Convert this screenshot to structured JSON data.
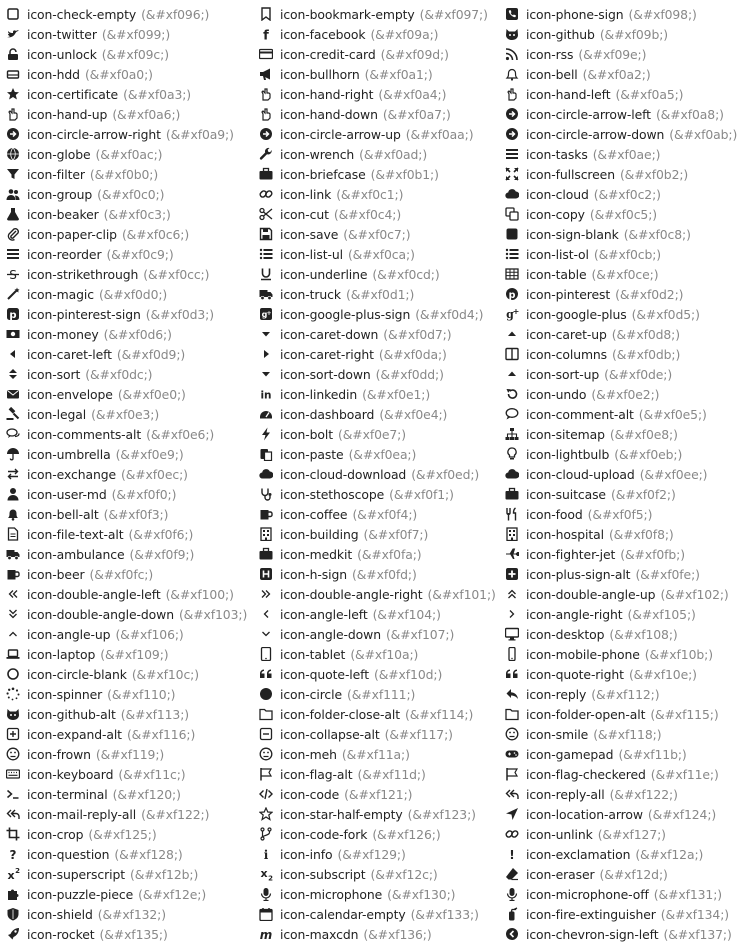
{
  "columns": [
    {
      "items": [
        {
          "name": "icon-check-empty",
          "code": "(&#xf096;)",
          "glyph": "box"
        },
        {
          "name": "icon-twitter",
          "code": "(&#xf099;)",
          "glyph": "bird"
        },
        {
          "name": "icon-unlock",
          "code": "(&#xf09c;)",
          "glyph": "lock"
        },
        {
          "name": "icon-hdd",
          "code": "(&#xf0a0;)",
          "glyph": "drive"
        },
        {
          "name": "icon-certificate",
          "code": "(&#xf0a3;)",
          "glyph": "star"
        },
        {
          "name": "icon-hand-up",
          "code": "(&#xf0a6;)",
          "glyph": "hand"
        },
        {
          "name": "icon-circle-arrow-right",
          "code": "(&#xf0a9;)",
          "glyph": "circle-arrow"
        },
        {
          "name": "icon-globe",
          "code": "(&#xf0ac;)",
          "glyph": "circle"
        },
        {
          "name": "icon-filter",
          "code": "(&#xf0b0;)",
          "glyph": "funnel"
        },
        {
          "name": "icon-group",
          "code": "(&#xf0c0;)",
          "glyph": "people"
        },
        {
          "name": "icon-beaker",
          "code": "(&#xf0c3;)",
          "glyph": "flask"
        },
        {
          "name": "icon-paper-clip",
          "code": "(&#xf0c6;)",
          "glyph": "clip"
        },
        {
          "name": "icon-reorder",
          "code": "(&#xf0c9;)",
          "glyph": "bars"
        },
        {
          "name": "icon-strikethrough",
          "code": "(&#xf0cc;)",
          "glyph": "strike"
        },
        {
          "name": "icon-magic",
          "code": "(&#xf0d0;)",
          "glyph": "wand"
        },
        {
          "name": "icon-pinterest-sign",
          "code": "(&#xf0d3;)",
          "glyph": "square-p"
        },
        {
          "name": "icon-money",
          "code": "(&#xf0d6;)",
          "glyph": "bill"
        },
        {
          "name": "icon-caret-left",
          "code": "(&#xf0d9;)",
          "glyph": "caret-left"
        },
        {
          "name": "icon-sort",
          "code": "(&#xf0dc;)",
          "glyph": "sort"
        },
        {
          "name": "icon-envelope",
          "code": "(&#xf0e0;)",
          "glyph": "envelope"
        },
        {
          "name": "icon-legal",
          "code": "(&#xf0e3;)",
          "glyph": "gavel"
        },
        {
          "name": "icon-comments-alt",
          "code": "(&#xf0e6;)",
          "glyph": "bubbles"
        },
        {
          "name": "icon-umbrella",
          "code": "(&#xf0e9;)",
          "glyph": "umbrella"
        },
        {
          "name": "icon-exchange",
          "code": "(&#xf0ec;)",
          "glyph": "exchange"
        },
        {
          "name": "icon-user-md",
          "code": "(&#xf0f0;)",
          "glyph": "person"
        },
        {
          "name": "icon-bell-alt",
          "code": "(&#xf0f3;)",
          "glyph": "bell-solid"
        },
        {
          "name": "icon-file-text-alt",
          "code": "(&#xf0f6;)",
          "glyph": "file"
        },
        {
          "name": "icon-ambulance",
          "code": "(&#xf0f9;)",
          "glyph": "truck"
        },
        {
          "name": "icon-beer",
          "code": "(&#xf0fc;)",
          "glyph": "mug"
        },
        {
          "name": "icon-double-angle-left",
          "code": "(&#xf100;)",
          "glyph": "dbl-left"
        },
        {
          "name": "icon-double-angle-down",
          "code": "(&#xf103;)",
          "glyph": "dbl-down"
        },
        {
          "name": "icon-angle-up",
          "code": "(&#xf106;)",
          "glyph": "angle-up"
        },
        {
          "name": "icon-laptop",
          "code": "(&#xf109;)",
          "glyph": "laptop"
        },
        {
          "name": "icon-circle-blank",
          "code": "(&#xf10c;)",
          "glyph": "ring"
        },
        {
          "name": "icon-spinner",
          "code": "(&#xf110;)",
          "glyph": "spinner"
        },
        {
          "name": "icon-github-alt",
          "code": "(&#xf113;)",
          "glyph": "cat"
        },
        {
          "name": "icon-expand-alt",
          "code": "(&#xf116;)",
          "glyph": "plus-box"
        },
        {
          "name": "icon-frown",
          "code": "(&#xf119;)",
          "glyph": "face"
        },
        {
          "name": "icon-keyboard",
          "code": "(&#xf11c;)",
          "glyph": "keyboard"
        },
        {
          "name": "icon-terminal",
          "code": "(&#xf120;)",
          "glyph": "prompt"
        },
        {
          "name": "icon-mail-reply-all",
          "code": "(&#xf122;)",
          "glyph": "reply-all"
        },
        {
          "name": "icon-crop",
          "code": "(&#xf125;)",
          "glyph": "crop"
        },
        {
          "name": "icon-question",
          "code": "(&#xf128;)",
          "glyph": "question"
        },
        {
          "name": "icon-superscript",
          "code": "(&#xf12b;)",
          "glyph": "sup"
        },
        {
          "name": "icon-puzzle-piece",
          "code": "(&#xf12e;)",
          "glyph": "puzzle"
        },
        {
          "name": "icon-shield",
          "code": "(&#xf132;)",
          "glyph": "shield"
        },
        {
          "name": "icon-rocket",
          "code": "(&#xf135;)",
          "glyph": "rocket"
        }
      ]
    },
    {
      "items": [
        {
          "name": "icon-bookmark-empty",
          "code": "(&#xf097;)",
          "glyph": "bookmark"
        },
        {
          "name": "icon-facebook",
          "code": "(&#xf09a;)",
          "glyph": "f"
        },
        {
          "name": "icon-credit-card",
          "code": "(&#xf09d;)",
          "glyph": "card"
        },
        {
          "name": "icon-bullhorn",
          "code": "(&#xf0a1;)",
          "glyph": "horn"
        },
        {
          "name": "icon-hand-right",
          "code": "(&#xf0a4;)",
          "glyph": "hand"
        },
        {
          "name": "icon-hand-down",
          "code": "(&#xf0a7;)",
          "glyph": "hand"
        },
        {
          "name": "icon-circle-arrow-up",
          "code": "(&#xf0aa;)",
          "glyph": "circle-arrow"
        },
        {
          "name": "icon-wrench",
          "code": "(&#xf0ad;)",
          "glyph": "wrench"
        },
        {
          "name": "icon-briefcase",
          "code": "(&#xf0b1;)",
          "glyph": "case"
        },
        {
          "name": "icon-link",
          "code": "(&#xf0c1;)",
          "glyph": "link"
        },
        {
          "name": "icon-cut",
          "code": "(&#xf0c4;)",
          "glyph": "scissors"
        },
        {
          "name": "icon-save",
          "code": "(&#xf0c7;)",
          "glyph": "floppy"
        },
        {
          "name": "icon-list-ul",
          "code": "(&#xf0ca;)",
          "glyph": "list"
        },
        {
          "name": "icon-underline",
          "code": "(&#xf0cd;)",
          "glyph": "underline"
        },
        {
          "name": "icon-truck",
          "code": "(&#xf0d1;)",
          "glyph": "truck"
        },
        {
          "name": "icon-google-plus-sign",
          "code": "(&#xf0d4;)",
          "glyph": "square-g"
        },
        {
          "name": "icon-caret-down",
          "code": "(&#xf0d7;)",
          "glyph": "caret-down"
        },
        {
          "name": "icon-caret-right",
          "code": "(&#xf0da;)",
          "glyph": "caret-right"
        },
        {
          "name": "icon-sort-down",
          "code": "(&#xf0dd;)",
          "glyph": "caret-down"
        },
        {
          "name": "icon-linkedin",
          "code": "(&#xf0e1;)",
          "glyph": "in"
        },
        {
          "name": "icon-dashboard",
          "code": "(&#xf0e4;)",
          "glyph": "gauge"
        },
        {
          "name": "icon-bolt",
          "code": "(&#xf0e7;)",
          "glyph": "bolt"
        },
        {
          "name": "icon-paste",
          "code": "(&#xf0ea;)",
          "glyph": "clipboard"
        },
        {
          "name": "icon-cloud-download",
          "code": "(&#xf0ed;)",
          "glyph": "cloud"
        },
        {
          "name": "icon-stethoscope",
          "code": "(&#xf0f1;)",
          "glyph": "steth"
        },
        {
          "name": "icon-coffee",
          "code": "(&#xf0f4;)",
          "glyph": "mug"
        },
        {
          "name": "icon-building",
          "code": "(&#xf0f7;)",
          "glyph": "building"
        },
        {
          "name": "icon-medkit",
          "code": "(&#xf0fa;)",
          "glyph": "case"
        },
        {
          "name": "icon-h-sign",
          "code": "(&#xf0fd;)",
          "glyph": "square-h"
        },
        {
          "name": "icon-double-angle-right",
          "code": "(&#xf101;)",
          "glyph": "dbl-right"
        },
        {
          "name": "icon-angle-left",
          "code": "(&#xf104;)",
          "glyph": "angle-left"
        },
        {
          "name": "icon-angle-down",
          "code": "(&#xf107;)",
          "glyph": "angle-down"
        },
        {
          "name": "icon-tablet",
          "code": "(&#xf10a;)",
          "glyph": "tablet"
        },
        {
          "name": "icon-quote-left",
          "code": "(&#xf10d;)",
          "glyph": "quote"
        },
        {
          "name": "icon-circle",
          "code": "(&#xf111;)",
          "glyph": "dot"
        },
        {
          "name": "icon-folder-close-alt",
          "code": "(&#xf114;)",
          "glyph": "folder"
        },
        {
          "name": "icon-collapse-alt",
          "code": "(&#xf117;)",
          "glyph": "minus-box"
        },
        {
          "name": "icon-meh",
          "code": "(&#xf11a;)",
          "glyph": "face"
        },
        {
          "name": "icon-flag-alt",
          "code": "(&#xf11d;)",
          "glyph": "flag"
        },
        {
          "name": "icon-code",
          "code": "(&#xf121;)",
          "glyph": "code"
        },
        {
          "name": "icon-star-half-empty",
          "code": "(&#xf123;)",
          "glyph": "star-outline"
        },
        {
          "name": "icon-code-fork",
          "code": "(&#xf126;)",
          "glyph": "fork"
        },
        {
          "name": "icon-info",
          "code": "(&#xf129;)",
          "glyph": "info"
        },
        {
          "name": "icon-subscript",
          "code": "(&#xf12c;)",
          "glyph": "sub"
        },
        {
          "name": "icon-microphone",
          "code": "(&#xf130;)",
          "glyph": "mic"
        },
        {
          "name": "icon-calendar-empty",
          "code": "(&#xf133;)",
          "glyph": "calendar"
        },
        {
          "name": "icon-maxcdn",
          "code": "(&#xf136;)",
          "glyph": "m"
        }
      ]
    },
    {
      "items": [
        {
          "name": "icon-phone-sign",
          "code": "(&#xf098;)",
          "glyph": "square-phone"
        },
        {
          "name": "icon-github",
          "code": "(&#xf09b;)",
          "glyph": "cat"
        },
        {
          "name": "icon-rss",
          "code": "(&#xf09e;)",
          "glyph": "rss"
        },
        {
          "name": "icon-bell",
          "code": "(&#xf0a2;)",
          "glyph": "bell"
        },
        {
          "name": "icon-hand-left",
          "code": "(&#xf0a5;)",
          "glyph": "hand"
        },
        {
          "name": "icon-circle-arrow-left",
          "code": "(&#xf0a8;)",
          "glyph": "circle-arrow"
        },
        {
          "name": "icon-circle-arrow-down",
          "code": "(&#xf0ab;)",
          "glyph": "circle-arrow"
        },
        {
          "name": "icon-tasks",
          "code": "(&#xf0ae;)",
          "glyph": "bars"
        },
        {
          "name": "icon-fullscreen",
          "code": "(&#xf0b2;)",
          "glyph": "arrows"
        },
        {
          "name": "icon-cloud",
          "code": "(&#xf0c2;)",
          "glyph": "cloud"
        },
        {
          "name": "icon-copy",
          "code": "(&#xf0c5;)",
          "glyph": "copy"
        },
        {
          "name": "icon-sign-blank",
          "code": "(&#xf0c8;)",
          "glyph": "square"
        },
        {
          "name": "icon-list-ol",
          "code": "(&#xf0cb;)",
          "glyph": "list"
        },
        {
          "name": "icon-table",
          "code": "(&#xf0ce;)",
          "glyph": "table"
        },
        {
          "name": "icon-pinterest",
          "code": "(&#xf0d2;)",
          "glyph": "circle-p"
        },
        {
          "name": "icon-google-plus",
          "code": "(&#xf0d5;)",
          "glyph": "gplus"
        },
        {
          "name": "icon-caret-up",
          "code": "(&#xf0d8;)",
          "glyph": "caret-up"
        },
        {
          "name": "icon-columns",
          "code": "(&#xf0db;)",
          "glyph": "columns"
        },
        {
          "name": "icon-sort-up",
          "code": "(&#xf0de;)",
          "glyph": "caret-up"
        },
        {
          "name": "icon-undo",
          "code": "(&#xf0e2;)",
          "glyph": "undo"
        },
        {
          "name": "icon-comment-alt",
          "code": "(&#xf0e5;)",
          "glyph": "bubble"
        },
        {
          "name": "icon-sitemap",
          "code": "(&#xf0e8;)",
          "glyph": "sitemap"
        },
        {
          "name": "icon-lightbulb",
          "code": "(&#xf0eb;)",
          "glyph": "bulb"
        },
        {
          "name": "icon-cloud-upload",
          "code": "(&#xf0ee;)",
          "glyph": "cloud"
        },
        {
          "name": "icon-suitcase",
          "code": "(&#xf0f2;)",
          "glyph": "case"
        },
        {
          "name": "icon-food",
          "code": "(&#xf0f5;)",
          "glyph": "food"
        },
        {
          "name": "icon-hospital",
          "code": "(&#xf0f8;)",
          "glyph": "building"
        },
        {
          "name": "icon-fighter-jet",
          "code": "(&#xf0fb;)",
          "glyph": "jet"
        },
        {
          "name": "icon-plus-sign-alt",
          "code": "(&#xf0fe;)",
          "glyph": "square-plus"
        },
        {
          "name": "icon-double-angle-up",
          "code": "(&#xf102;)",
          "glyph": "dbl-up"
        },
        {
          "name": "icon-angle-right",
          "code": "(&#xf105;)",
          "glyph": "angle-right"
        },
        {
          "name": "icon-desktop",
          "code": "(&#xf108;)",
          "glyph": "monitor"
        },
        {
          "name": "icon-mobile-phone",
          "code": "(&#xf10b;)",
          "glyph": "mobile"
        },
        {
          "name": "icon-quote-right",
          "code": "(&#xf10e;)",
          "glyph": "quote"
        },
        {
          "name": "icon-reply",
          "code": "(&#xf112;)",
          "glyph": "reply"
        },
        {
          "name": "icon-folder-open-alt",
          "code": "(&#xf115;)",
          "glyph": "folder"
        },
        {
          "name": "icon-smile",
          "code": "(&#xf118;)",
          "glyph": "face"
        },
        {
          "name": "icon-gamepad",
          "code": "(&#xf11b;)",
          "glyph": "gamepad"
        },
        {
          "name": "icon-flag-checkered",
          "code": "(&#xf11e;)",
          "glyph": "flag"
        },
        {
          "name": "icon-reply-all",
          "code": "(&#xf122;)",
          "glyph": "reply-all"
        },
        {
          "name": "icon-location-arrow",
          "code": "(&#xf124;)",
          "glyph": "loc-arrow"
        },
        {
          "name": "icon-unlink",
          "code": "(&#xf127;)",
          "glyph": "link"
        },
        {
          "name": "icon-exclamation",
          "code": "(&#xf12a;)",
          "glyph": "exclaim"
        },
        {
          "name": "icon-eraser",
          "code": "(&#xf12d;)",
          "glyph": "eraser"
        },
        {
          "name": "icon-microphone-off",
          "code": "(&#xf131;)",
          "glyph": "mic"
        },
        {
          "name": "icon-fire-extinguisher",
          "code": "(&#xf134;)",
          "glyph": "extinguisher"
        },
        {
          "name": "icon-chevron-sign-left",
          "code": "(&#xf137;)",
          "glyph": "circle-chevron"
        }
      ]
    }
  ],
  "colors": {
    "name_text": "#222222",
    "code_text": "#888888",
    "icon": "#222222",
    "background": "#ffffff"
  }
}
